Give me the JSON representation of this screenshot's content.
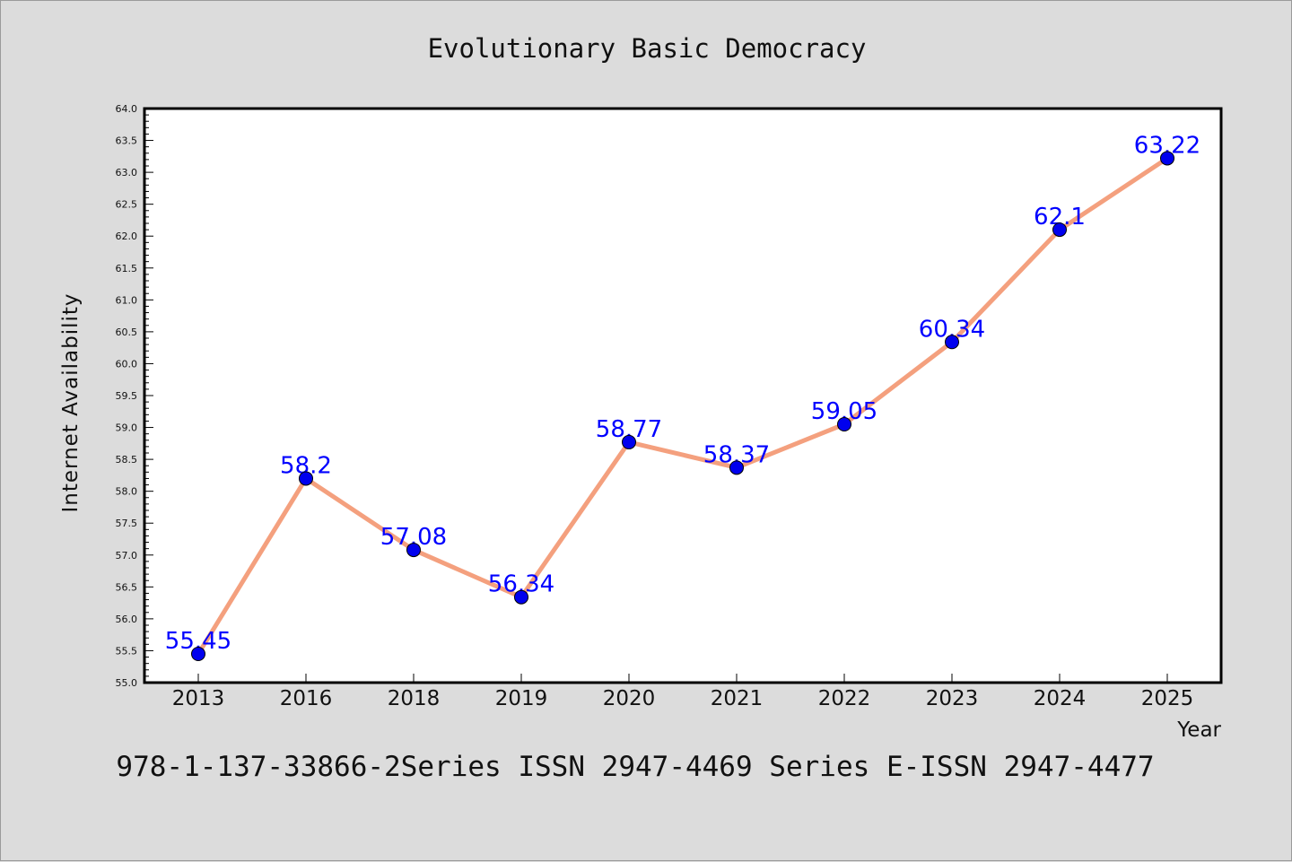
{
  "chart_data": {
    "type": "line",
    "title": "Evolutionary Basic Democracy",
    "xlabel": "Year",
    "ylabel": "Internet Availability",
    "categories": [
      "2013",
      "2016",
      "2018",
      "2019",
      "2020",
      "2021",
      "2022",
      "2023",
      "2024",
      "2025"
    ],
    "values": [
      55.45,
      58.2,
      57.08,
      56.34,
      58.77,
      58.37,
      59.05,
      60.34,
      62.1,
      63.22
    ],
    "data_labels": [
      "55.45",
      "58.2",
      "57.08",
      "56.34",
      "58.77",
      "58.37",
      "59.05",
      "60.34",
      "62.1",
      "63.22"
    ],
    "ylim": [
      55.0,
      64.0
    ],
    "yticks": [
      "55.0",
      "55.5",
      "56.0",
      "56.5",
      "57.0",
      "57.5",
      "58.0",
      "58.5",
      "59.0",
      "59.5",
      "60.0",
      "60.5",
      "61.0",
      "61.5",
      "62.0",
      "62.5",
      "63.0",
      "63.5",
      "64.0"
    ],
    "grid": false,
    "line_color": "#f4a07e",
    "marker_color": "#0000ee",
    "label_color": "#0000ff"
  },
  "footer": "978-1-137-33866-2Series ISSN 2947-4469 Series E-ISSN 2947-4477"
}
